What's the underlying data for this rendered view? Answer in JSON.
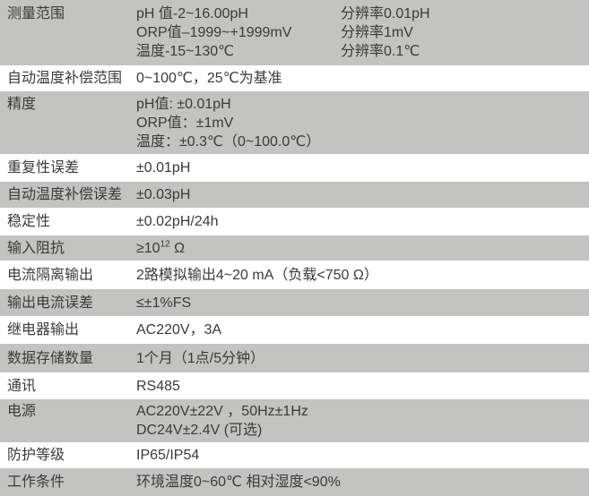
{
  "colors": {
    "row_gray": "#c3c3c1",
    "row_white": "#ffffff",
    "text": "#3a3a3a"
  },
  "table": {
    "rows": [
      {
        "label": "测量范围",
        "lines": [
          {
            "param": "pH 值-2~16.00pH",
            "res": "分辨率0.01pH"
          },
          {
            "param": "ORP值–1999~+1999mV",
            "res": "分辨率1mV"
          },
          {
            "param": "温度-15~130℃",
            "res": "分辨率0.1℃"
          }
        ]
      },
      {
        "label": "自动温度补偿范围",
        "value": "0~100℃，25℃为基准"
      },
      {
        "label": "精度",
        "lines": [
          "pH值: ±0.01pH",
          "ORP值：±1mV",
          "温度：±0.3℃（0~100.0℃）"
        ]
      },
      {
        "label": "重复性误差",
        "value": "±0.01pH"
      },
      {
        "label": "自动温度补偿误差",
        "value": "±0.03pH"
      },
      {
        "label": "稳定性",
        "value": "±0.02pH/24h"
      },
      {
        "label": "输入阻抗",
        "value_base": "≥10",
        "value_sup": "12",
        "value_unit": " Ω"
      },
      {
        "label": "电流隔离输出",
        "value": "2路模拟输出4~20 mA（负载<750 Ω）"
      },
      {
        "label": "输出电流误差",
        "value": "≤±1%FS"
      },
      {
        "label": "继电器输出",
        "value": "AC220V，3A"
      },
      {
        "label": "数据存储数量",
        "value": "1个月（1点/5分钟）"
      },
      {
        "label": "通讯",
        "value": "RS485"
      },
      {
        "label": "电源",
        "lines": [
          "AC220V±22V ，50Hz±1Hz",
          "DC24V±2.4V (可选)"
        ]
      },
      {
        "label": "防护等级",
        "value": "IP65/IP54"
      },
      {
        "label": "工作条件",
        "value": "环境温度0~60℃ 相对湿度<90%"
      }
    ]
  }
}
